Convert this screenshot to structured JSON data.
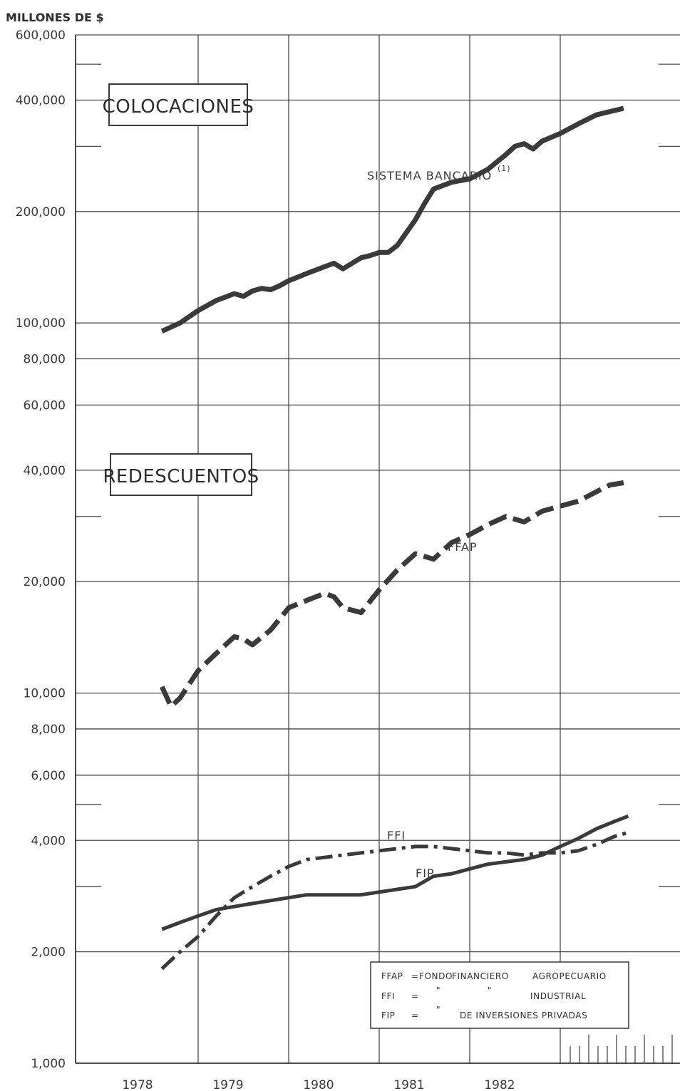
{
  "chart_data": {
    "type": "line",
    "y_unit_label": "MILLONES DE $",
    "y_scale": "log",
    "ylim": [
      1000,
      600000
    ],
    "y_tick_labels": [
      {
        "value": 600000,
        "label": "600,000"
      },
      {
        "value": 400000,
        "label": "400,000"
      },
      {
        "value": 200000,
        "label": "200,000"
      },
      {
        "value": 100000,
        "label": "100,000"
      },
      {
        "value": 80000,
        "label": "80,000"
      },
      {
        "value": 60000,
        "label": "60,000"
      },
      {
        "value": 40000,
        "label": "40,000"
      },
      {
        "value": 20000,
        "label": "20,000"
      },
      {
        "value": 10000,
        "label": "10,000"
      },
      {
        "value": 8000,
        "label": "8,000"
      },
      {
        "value": 6000,
        "label": "6,000"
      },
      {
        "value": 4000,
        "label": "4,000"
      },
      {
        "value": 2000,
        "label": "2,000"
      },
      {
        "value": 1000,
        "label": "1,000"
      }
    ],
    "y_minor_ticks": [
      500000,
      300000,
      30000,
      5000,
      3000
    ],
    "xlim": [
      1977.55,
      1982.75
    ],
    "x_tick_labels": [
      "1978",
      "1979",
      "1980",
      "1981",
      "1982"
    ],
    "x_gridlines": [
      1978.0,
      1979.0,
      1980.0,
      1981.0,
      1982.0
    ],
    "grid": true,
    "boxes": {
      "colocaciones": "COLOCACIONES",
      "redescuentos": "REDESCUENTOS"
    },
    "series": [
      {
        "name": "SISTEMA BANCARIO",
        "label": "SISTEMA BANCARIO",
        "footnote": "(1)",
        "style": "solid",
        "x": [
          1977.6,
          1977.8,
          1978.0,
          1978.2,
          1978.4,
          1978.5,
          1978.6,
          1978.7,
          1978.8,
          1978.9,
          1979.0,
          1979.2,
          1979.4,
          1979.5,
          1979.6,
          1979.8,
          1979.9,
          1980.0,
          1980.1,
          1980.2,
          1980.4,
          1980.5,
          1980.6,
          1980.8,
          1981.0,
          1981.2,
          1981.4,
          1981.5,
          1981.6,
          1981.7,
          1981.8,
          1982.0,
          1982.2,
          1982.4,
          1982.7
        ],
        "values": [
          95000,
          100000,
          108000,
          115000,
          120000,
          118000,
          122000,
          124000,
          123000,
          126000,
          130000,
          136000,
          142000,
          145000,
          140000,
          150000,
          152000,
          155000,
          155000,
          162000,
          190000,
          210000,
          230000,
          240000,
          245000,
          260000,
          285000,
          300000,
          305000,
          295000,
          310000,
          325000,
          345000,
          365000,
          380000
        ]
      },
      {
        "name": "FFAP",
        "label": "FFAP",
        "style": "dashed",
        "x": [
          1977.6,
          1977.7,
          1977.8,
          1978.0,
          1978.2,
          1978.4,
          1978.5,
          1978.6,
          1978.8,
          1979.0,
          1979.2,
          1979.4,
          1979.5,
          1979.6,
          1979.8,
          1980.0,
          1980.2,
          1980.4,
          1980.6,
          1980.8,
          1981.0,
          1981.2,
          1981.4,
          1981.6,
          1981.8,
          1982.0,
          1982.2,
          1982.4,
          1982.55,
          1982.7
        ],
        "values": [
          10400,
          9200,
          9700,
          11500,
          12800,
          14200,
          14000,
          13500,
          14800,
          17000,
          17800,
          18600,
          18200,
          17000,
          16500,
          19000,
          21500,
          23800,
          23000,
          25500,
          26800,
          28500,
          30000,
          29000,
          31000,
          32000,
          33000,
          35000,
          36500,
          37000
        ]
      },
      {
        "name": "FFI",
        "label": "FFI",
        "style": "dash-dot",
        "x": [
          1977.6,
          1977.8,
          1978.0,
          1978.2,
          1978.4,
          1978.6,
          1978.8,
          1979.0,
          1979.2,
          1979.4,
          1979.6,
          1979.8,
          1980.0,
          1980.2,
          1980.4,
          1980.6,
          1980.8,
          1981.0,
          1981.2,
          1981.4,
          1981.6,
          1981.8,
          1982.0,
          1982.2,
          1982.4,
          1982.6,
          1982.75
        ],
        "values": [
          1800,
          2000,
          2200,
          2500,
          2800,
          3000,
          3200,
          3400,
          3550,
          3600,
          3650,
          3700,
          3750,
          3800,
          3850,
          3850,
          3800,
          3750,
          3700,
          3700,
          3650,
          3700,
          3700,
          3750,
          3900,
          4100,
          4200
        ]
      },
      {
        "name": "FIP",
        "label": "FIP",
        "style": "solid",
        "x": [
          1977.6,
          1977.8,
          1978.0,
          1978.2,
          1978.4,
          1978.6,
          1978.8,
          1979.0,
          1979.2,
          1979.4,
          1979.6,
          1979.8,
          1980.0,
          1980.2,
          1980.4,
          1980.6,
          1980.8,
          1981.0,
          1981.2,
          1981.4,
          1981.6,
          1981.8,
          1982.0,
          1982.2,
          1982.4,
          1982.6,
          1982.75
        ],
        "values": [
          2300,
          2400,
          2500,
          2600,
          2650,
          2700,
          2750,
          2800,
          2850,
          2850,
          2850,
          2850,
          2900,
          2950,
          3000,
          3200,
          3250,
          3350,
          3450,
          3500,
          3550,
          3650,
          3850,
          4050,
          4300,
          4500,
          4650
        ]
      }
    ],
    "legend": {
      "placement": "bottom-right",
      "rows": [
        {
          "abbr": "FFAP",
          "sep": "=",
          "col2": "FONDO",
          "col3": "FINANCIERO",
          "col4": "AGROPECUARIO"
        },
        {
          "abbr": "FFI",
          "sep": "=",
          "col2": "\"",
          "col3": "\"",
          "col4": "INDUSTRIAL"
        },
        {
          "abbr": "FIP",
          "sep": "=",
          "col2": "\"",
          "col3": "",
          "col4": "DE INVERSIONES PRIVADAS"
        }
      ]
    }
  },
  "colors": {
    "ink": "#3a3a3a",
    "grid": "#4a4a4a",
    "background": "#ffffff"
  }
}
